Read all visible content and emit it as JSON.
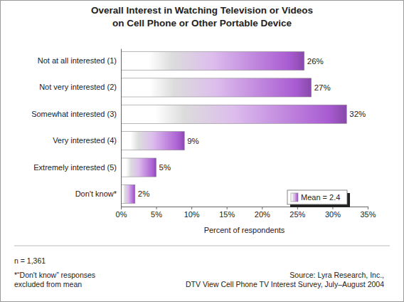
{
  "chart_data": {
    "type": "bar",
    "orientation": "horizontal",
    "title": [
      "Overall Interest in Watching Television or Videos",
      "on Cell Phone or Other Portable Device"
    ],
    "categories": [
      "Not at all interested (1)",
      "Not very interested (2)",
      "Somewhat interested (3)",
      "Very interested (4)",
      "Extremely interested (5)",
      "Don't know*"
    ],
    "series": [
      {
        "name": "Mean = 2.4",
        "color": "#a95bd2",
        "values": [
          26,
          27,
          32,
          9,
          5,
          2
        ],
        "value_labels": [
          "26%",
          "27%",
          "32%",
          "9%",
          "5%",
          "2%"
        ]
      }
    ],
    "data_labels": true,
    "legend": "right",
    "grid": false,
    "x_label": "Percent of respondents",
    "xlim": [
      0,
      35
    ],
    "xticks": [
      {
        "value": 0,
        "label": "0%"
      },
      {
        "value": 5,
        "label": "5%"
      },
      {
        "value": 10,
        "label": "10%"
      },
      {
        "value": 15,
        "label": "15%"
      },
      {
        "value": 20,
        "label": "20%"
      },
      {
        "value": 25,
        "label": "25%"
      },
      {
        "value": 30,
        "label": "30%"
      },
      {
        "value": 35,
        "label": "35%"
      }
    ],
    "annotations": [
      "n = 1,361",
      "*“Don't know” responses",
      "excluded from mean",
      "Source: Lyra Research, Inc.,",
      "DTV View Cell Phone TV Interest Survey, July–August 2004"
    ]
  }
}
